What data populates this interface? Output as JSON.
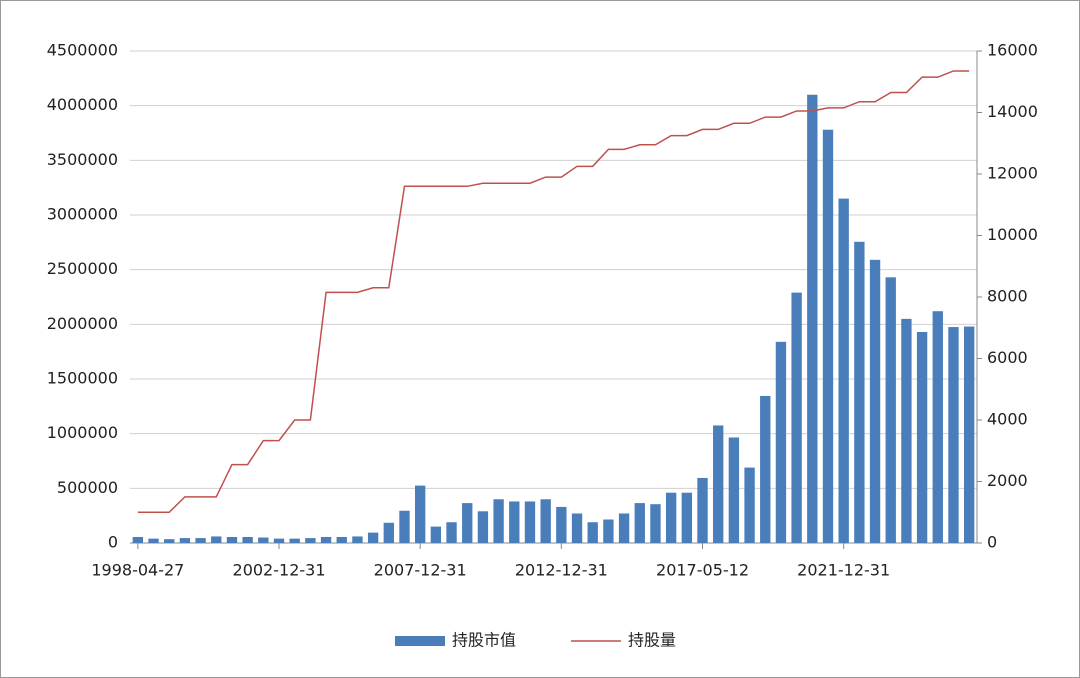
{
  "chart_data": {
    "type": "bar",
    "categories": [
      "1998-04-27",
      null,
      null,
      null,
      null,
      null,
      null,
      null,
      null,
      "2002-12-31",
      null,
      null,
      null,
      null,
      null,
      null,
      null,
      null,
      "2007-12-31",
      null,
      null,
      null,
      null,
      null,
      null,
      null,
      null,
      "2012-12-31",
      null,
      null,
      null,
      null,
      null,
      null,
      null,
      null,
      "2017-05-12",
      null,
      null,
      null,
      null,
      null,
      null,
      null,
      null,
      "2021-12-31",
      null,
      null,
      null,
      null,
      null,
      null,
      null,
      null
    ],
    "series": [
      {
        "name": "持股市值",
        "type": "bar",
        "color": "#4a7ebb",
        "values": [
          55000,
          40000,
          35000,
          45000,
          45000,
          60000,
          55000,
          55000,
          50000,
          40000,
          40000,
          45000,
          55000,
          55000,
          60000,
          95000,
          185000,
          295000,
          525000,
          150000,
          190000,
          365000,
          290000,
          400000,
          380000,
          380000,
          400000,
          330000,
          270000,
          190000,
          215000,
          270000,
          365000,
          355000,
          460000,
          460000,
          595000,
          1075000,
          965000,
          690000,
          1345000,
          1840000,
          2290000,
          4100000,
          3780000,
          3150000,
          2755000,
          2590000,
          2430000,
          2050000,
          1930000,
          2120000,
          1975000,
          1980000
        ]
      },
      {
        "name": "持股量",
        "type": "line",
        "axis": "y2",
        "color": "#c0504d",
        "values": [
          1000,
          1000,
          1000,
          1500,
          1500,
          1500,
          2550,
          2550,
          3330,
          3330,
          4000,
          4000,
          8150,
          8150,
          8150,
          8300,
          8300,
          11600,
          11600,
          11600,
          11600,
          11600,
          11700,
          11700,
          11700,
          11700,
          11900,
          11900,
          12250,
          12250,
          12800,
          12800,
          12950,
          12950,
          13250,
          13250,
          13450,
          13450,
          13650,
          13650,
          13850,
          13850,
          14050,
          14050,
          14150,
          14150,
          14350,
          14350,
          14650,
          14650,
          15150,
          15150,
          15350,
          15350
        ]
      }
    ],
    "ylim": [
      0,
      4500000
    ],
    "yticks": [
      0,
      500000,
      1000000,
      1500000,
      2000000,
      2500000,
      3000000,
      3500000,
      4000000,
      4500000
    ],
    "y2lim": [
      0,
      16000
    ],
    "y2ticks": [
      0,
      2000,
      4000,
      6000,
      8000,
      10000,
      12000,
      14000,
      16000
    ],
    "grid": true,
    "legend": "bottom"
  }
}
